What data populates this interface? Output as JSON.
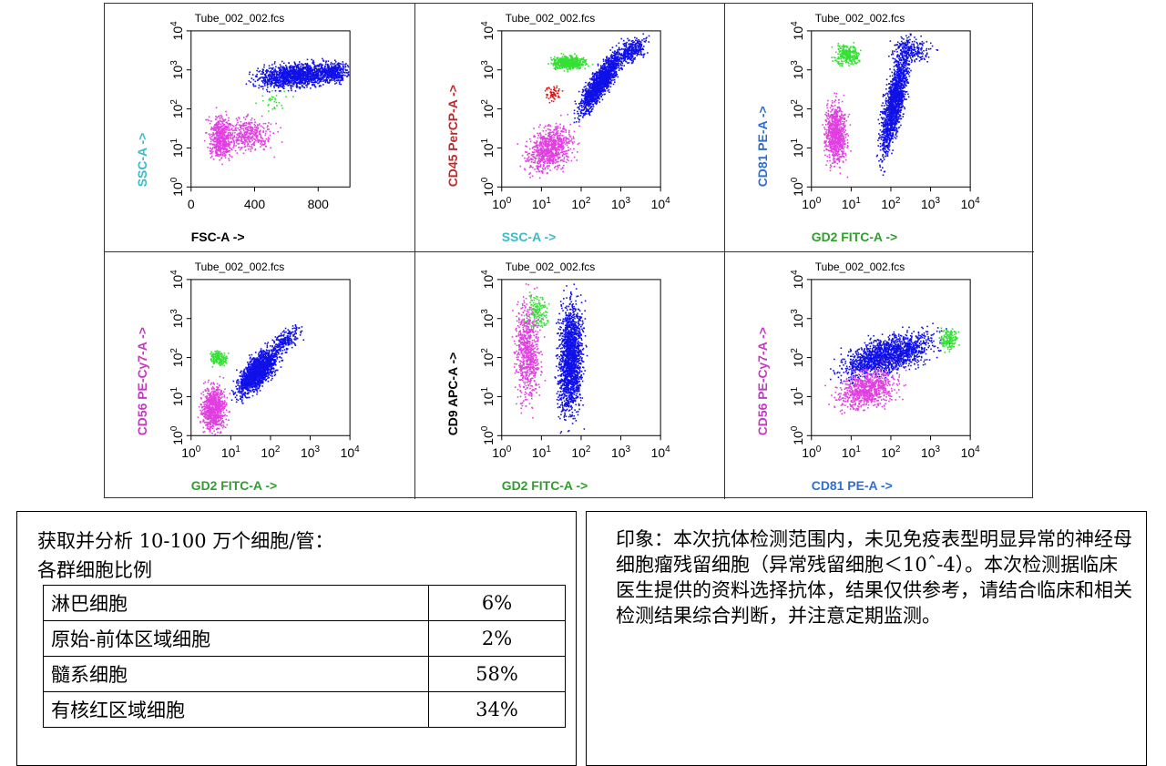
{
  "plots": [
    {
      "tube": "Tube_002_002.fcs",
      "x_axis": {
        "label": "FSC-A ->",
        "color": "#000000",
        "scale": "linear",
        "ticks": [
          "0",
          "400",
          "800"
        ]
      },
      "y_axis": {
        "label": "SSC-A ->",
        "color": "#3bbbc8",
        "scale": "log",
        "ticks": [
          "10^0",
          "10^1",
          "10^2",
          "10^3",
          "10^4"
        ]
      }
    },
    {
      "tube": "Tube_002_002.fcs",
      "x_axis": {
        "label": "SSC-A ->",
        "color": "#3bbbc8",
        "scale": "log",
        "ticks": [
          "10^0",
          "10^1",
          "10^2",
          "10^3",
          "10^4"
        ]
      },
      "y_axis": {
        "label": "CD45 PerCP-A ->",
        "color": "#c0282a",
        "scale": "log",
        "ticks": [
          "10^0",
          "10^1",
          "10^2",
          "10^3",
          "10^4"
        ]
      }
    },
    {
      "tube": "Tube_002_002.fcs",
      "x_axis": {
        "label": "GD2 FITC-A ->",
        "color": "#2f9e2c",
        "scale": "log",
        "ticks": [
          "10^0",
          "10^1",
          "10^2",
          "10^3",
          "10^4"
        ]
      },
      "y_axis": {
        "label": "CD81 PE-A ->",
        "color": "#2d6fd1",
        "scale": "log",
        "ticks": [
          "10^0",
          "10^1",
          "10^2",
          "10^3",
          "10^4"
        ]
      }
    },
    {
      "tube": "Tube_002_002.fcs",
      "x_axis": {
        "label": "GD2 FITC-A ->",
        "color": "#2f9e2c",
        "scale": "log",
        "ticks": [
          "10^0",
          "10^1",
          "10^2",
          "10^3",
          "10^4"
        ]
      },
      "y_axis": {
        "label": "CD56 PE-Cy7-A ->",
        "color": "#c23ac2",
        "scale": "log",
        "ticks": [
          "10^0",
          "10^1",
          "10^2",
          "10^3",
          "10^4"
        ]
      }
    },
    {
      "tube": "Tube_002_002.fcs",
      "x_axis": {
        "label": "GD2 FITC-A ->",
        "color": "#2f9e2c",
        "scale": "log",
        "ticks": [
          "10^0",
          "10^1",
          "10^2",
          "10^3",
          "10^4"
        ]
      },
      "y_axis": {
        "label": "CD9 APC-A ->",
        "color": "#000000",
        "scale": "log",
        "ticks": [
          "10^0",
          "10^1",
          "10^2",
          "10^3",
          "10^4"
        ]
      }
    },
    {
      "tube": "Tube_002_002.fcs",
      "x_axis": {
        "label": "CD81 PE-A ->",
        "color": "#2d6fd1",
        "scale": "log",
        "ticks": [
          "10^0",
          "10^1",
          "10^2",
          "10^3",
          "10^4"
        ]
      },
      "y_axis": {
        "label": "CD56 PE-Cy7-A ->",
        "color": "#c23ac2",
        "scale": "log",
        "ticks": [
          "10^0",
          "10^1",
          "10^2",
          "10^3",
          "10^4"
        ]
      }
    }
  ],
  "population_colors": {
    "lymphocytes": "#e13fe1",
    "precursor_region": "#e01818",
    "myeloid": "#1010e8",
    "nucleated_erythroid": "#33e033"
  },
  "summary": {
    "line1": "获取并分析 10-100 万个细胞/管：",
    "line2": "各群细胞比例",
    "rows": [
      {
        "name": "淋巴细胞",
        "percent": "6%"
      },
      {
        "name": "原始-前体区域细胞",
        "percent": "2%"
      },
      {
        "name": "髓系细胞",
        "percent": "58%"
      },
      {
        "name": "有核红区域细胞",
        "percent": "34%"
      }
    ]
  },
  "impression": {
    "text": "印象：本次抗体检测范围内，未见免疫表型明显异常的神经母细胞瘤残留细胞（异常残留细胞＜10ˆ-4）。本次检测据临床医生提供的资料选择抗体，结果仅供参考，请结合临床和相关检测结果综合判断，并注意定期监测。"
  }
}
